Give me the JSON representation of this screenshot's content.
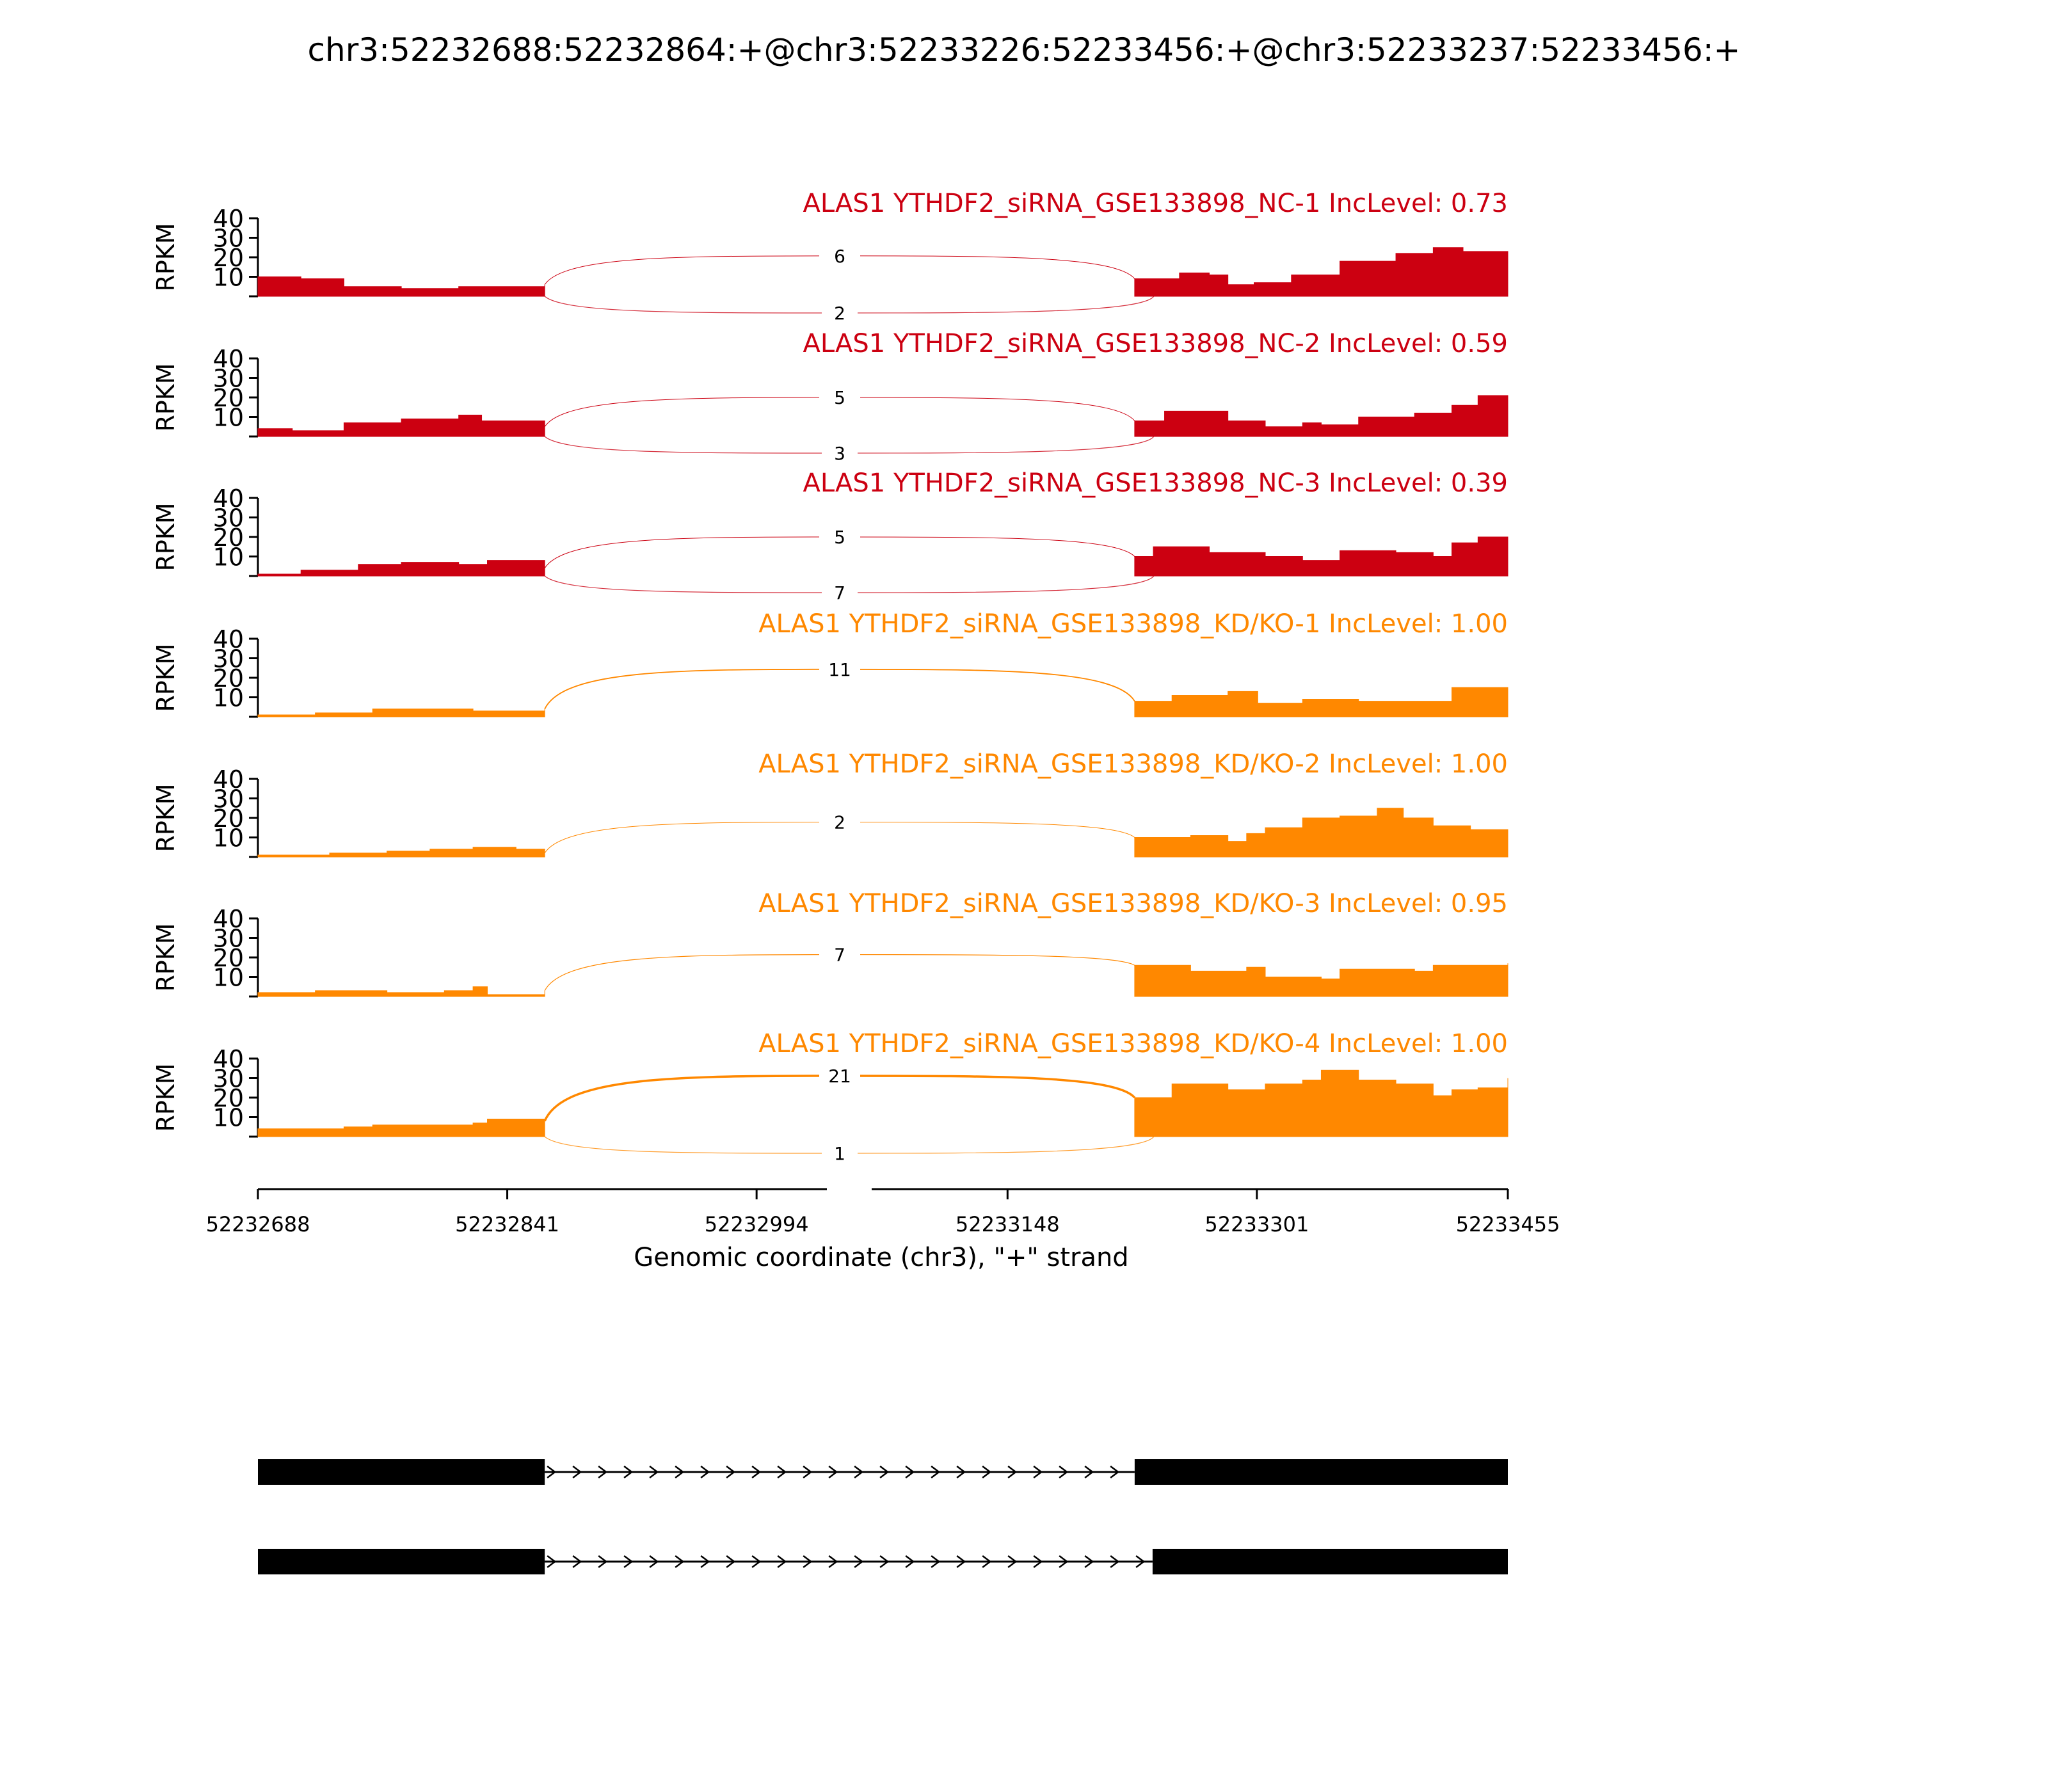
{
  "chart_data": {
    "type": "area",
    "title": "chr3:52232688:52232864:+@chr3:52233226:52233456:+@chr3:52233237:52233456:+",
    "ylabel": "RPKM",
    "ylim": [
      0,
      40
    ],
    "yticks": [
      "10",
      "20",
      "30",
      "40"
    ],
    "xlabel": "Genomic coordinate (chr3), \"+\" strand",
    "xticks": [
      "52232688",
      "52232841",
      "52232994",
      "52233148",
      "52233301",
      "52233455"
    ],
    "exon1_end": 52232864,
    "exon2_start": 52233226,
    "legend": "none",
    "grid": false,
    "colors": {
      "NC": "#cc0011",
      "KD": "#ff8800"
    },
    "panels": [
      {
        "label": "ALAS1 YTHDF2_siRNA_GSE133898_NC-1 IncLevel: 0.73",
        "group": "NC",
        "junction_upper": "6",
        "junction_lower": "2",
        "coverage_exon1": [
          [
            0,
            10
          ],
          [
            0.15,
            9
          ],
          [
            0.3,
            5
          ],
          [
            0.5,
            4
          ],
          [
            0.7,
            5
          ],
          [
            0.85,
            5
          ],
          [
            1,
            6
          ]
        ],
        "coverage_exon2": [
          [
            0,
            9
          ],
          [
            0.12,
            12
          ],
          [
            0.2,
            11
          ],
          [
            0.25,
            6
          ],
          [
            0.32,
            7
          ],
          [
            0.42,
            11
          ],
          [
            0.55,
            18
          ],
          [
            0.7,
            22
          ],
          [
            0.8,
            25
          ],
          [
            0.88,
            23
          ],
          [
            1,
            21
          ]
        ]
      },
      {
        "label": "ALAS1 YTHDF2_siRNA_GSE133898_NC-2 IncLevel: 0.59",
        "group": "NC",
        "junction_upper": "5",
        "junction_lower": "3",
        "coverage_exon1": [
          [
            0,
            4
          ],
          [
            0.12,
            3
          ],
          [
            0.3,
            7
          ],
          [
            0.5,
            9
          ],
          [
            0.7,
            11
          ],
          [
            0.78,
            8
          ],
          [
            1,
            5
          ]
        ],
        "coverage_exon2": [
          [
            0,
            8
          ],
          [
            0.08,
            13
          ],
          [
            0.25,
            8
          ],
          [
            0.35,
            5
          ],
          [
            0.45,
            7
          ],
          [
            0.5,
            6
          ],
          [
            0.6,
            10
          ],
          [
            0.75,
            12
          ],
          [
            0.85,
            16
          ],
          [
            0.92,
            21
          ],
          [
            1,
            19
          ]
        ]
      },
      {
        "label": "ALAS1 YTHDF2_siRNA_GSE133898_NC-3 IncLevel: 0.39",
        "group": "NC",
        "junction_upper": "5",
        "junction_lower": "7",
        "coverage_exon1": [
          [
            0,
            1
          ],
          [
            0.15,
            3
          ],
          [
            0.35,
            6
          ],
          [
            0.5,
            7
          ],
          [
            0.7,
            6
          ],
          [
            0.8,
            8
          ],
          [
            1,
            4
          ]
        ],
        "coverage_exon2": [
          [
            0,
            10
          ],
          [
            0.05,
            15
          ],
          [
            0.2,
            12
          ],
          [
            0.35,
            10
          ],
          [
            0.45,
            8
          ],
          [
            0.55,
            13
          ],
          [
            0.7,
            12
          ],
          [
            0.8,
            10
          ],
          [
            0.85,
            17
          ],
          [
            0.92,
            20
          ],
          [
            1,
            20
          ]
        ]
      },
      {
        "label": "ALAS1 YTHDF2_siRNA_GSE133898_KD/KO-1 IncLevel: 1.00",
        "group": "KD",
        "junction_upper": "11",
        "junction_lower": "",
        "coverage_exon1": [
          [
            0,
            1
          ],
          [
            0.2,
            2
          ],
          [
            0.4,
            4
          ],
          [
            0.6,
            4
          ],
          [
            0.75,
            3
          ],
          [
            1,
            4
          ]
        ],
        "coverage_exon2": [
          [
            0,
            8
          ],
          [
            0.1,
            11
          ],
          [
            0.25,
            13
          ],
          [
            0.33,
            7
          ],
          [
            0.45,
            9
          ],
          [
            0.6,
            8
          ],
          [
            0.75,
            8
          ],
          [
            0.85,
            15
          ],
          [
            0.95,
            15
          ],
          [
            1,
            12
          ]
        ]
      },
      {
        "label": "ALAS1 YTHDF2_siRNA_GSE133898_KD/KO-2 IncLevel: 1.00",
        "group": "KD",
        "junction_upper": "2",
        "junction_lower": "",
        "coverage_exon1": [
          [
            0,
            1
          ],
          [
            0.25,
            2
          ],
          [
            0.45,
            3
          ],
          [
            0.6,
            4
          ],
          [
            0.75,
            5
          ],
          [
            0.9,
            4
          ],
          [
            1,
            2
          ]
        ],
        "coverage_exon2": [
          [
            0,
            10
          ],
          [
            0.15,
            11
          ],
          [
            0.25,
            8
          ],
          [
            0.3,
            12
          ],
          [
            0.35,
            15
          ],
          [
            0.45,
            20
          ],
          [
            0.55,
            21
          ],
          [
            0.65,
            25
          ],
          [
            0.72,
            20
          ],
          [
            0.8,
            16
          ],
          [
            0.9,
            14
          ],
          [
            1,
            10
          ]
        ]
      },
      {
        "label": "ALAS1 YTHDF2_siRNA_GSE133898_KD/KO-3 IncLevel: 0.95",
        "group": "KD",
        "junction_upper": "7",
        "junction_lower": "",
        "coverage_exon1": [
          [
            0,
            2
          ],
          [
            0.2,
            3
          ],
          [
            0.45,
            2
          ],
          [
            0.65,
            3
          ],
          [
            0.75,
            5
          ],
          [
            0.8,
            1
          ],
          [
            1,
            3
          ]
        ],
        "coverage_exon2": [
          [
            0,
            16
          ],
          [
            0.15,
            13
          ],
          [
            0.3,
            15
          ],
          [
            0.35,
            10
          ],
          [
            0.5,
            9
          ],
          [
            0.55,
            14
          ],
          [
            0.75,
            13
          ],
          [
            0.8,
            16
          ],
          [
            1,
            17
          ]
        ]
      },
      {
        "label": "ALAS1 YTHDF2_siRNA_GSE133898_KD/KO-4 IncLevel: 1.00",
        "group": "KD",
        "junction_upper": "21",
        "junction_lower": "1",
        "coverage_exon1": [
          [
            0,
            4
          ],
          [
            0.3,
            5
          ],
          [
            0.4,
            6
          ],
          [
            0.6,
            6
          ],
          [
            0.75,
            7
          ],
          [
            0.8,
            9
          ],
          [
            1,
            8
          ]
        ],
        "coverage_exon2": [
          [
            0,
            20
          ],
          [
            0.1,
            27
          ],
          [
            0.25,
            24
          ],
          [
            0.35,
            27
          ],
          [
            0.45,
            29
          ],
          [
            0.5,
            34
          ],
          [
            0.6,
            29
          ],
          [
            0.7,
            27
          ],
          [
            0.8,
            21
          ],
          [
            0.85,
            24
          ],
          [
            0.92,
            25
          ],
          [
            1,
            30
          ]
        ]
      }
    ],
    "isoforms": [
      {
        "exon1_end": 52232864,
        "exon2_start": 52233226
      },
      {
        "exon1_end": 52232864,
        "exon2_start": 52233237
      }
    ]
  }
}
